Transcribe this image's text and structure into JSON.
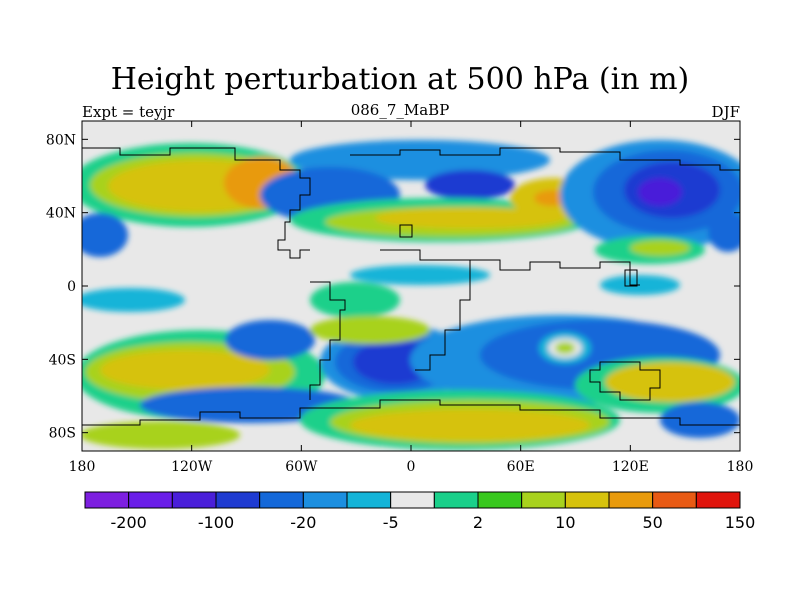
{
  "title": "Height perturbation at 500 hPa (in m)",
  "subtitle_left": "Expt = teyjr",
  "subtitle_center": "086_7_MaBP",
  "subtitle_right": "DJF",
  "axes": {
    "x_range": [
      -180,
      180
    ],
    "y_range": [
      -90,
      90
    ],
    "x_ticks": [
      {
        "value": -180,
        "label": "180"
      },
      {
        "value": -120,
        "label": "120W"
      },
      {
        "value": -60,
        "label": "60W"
      },
      {
        "value": 0,
        "label": "0"
      },
      {
        "value": 60,
        "label": "60E"
      },
      {
        "value": 120,
        "label": "120E"
      },
      {
        "value": 180,
        "label": "180"
      }
    ],
    "y_ticks": [
      {
        "value": 80,
        "label": "80N"
      },
      {
        "value": 40,
        "label": "40N"
      },
      {
        "value": 0,
        "label": "0"
      },
      {
        "value": -40,
        "label": "40S"
      },
      {
        "value": -80,
        "label": "80S"
      }
    ]
  },
  "colorbar": {
    "colors": [
      "#7d1fe0",
      "#6a1ee8",
      "#4a1fd9",
      "#1f3bd1",
      "#1468d9",
      "#1c8fe0",
      "#14b4d8",
      "#e8e8e8",
      "#1ad08a",
      "#38c81e",
      "#a8d21e",
      "#d6c20c",
      "#e89a0c",
      "#e85a14",
      "#e0140c"
    ],
    "labels": [
      {
        "after_box": 1,
        "text": "-200"
      },
      {
        "after_box": 3,
        "text": "-100"
      },
      {
        "after_box": 5,
        "text": "-20"
      },
      {
        "after_box": 7,
        "text": "-5"
      },
      {
        "after_box": 9,
        "text": "2"
      },
      {
        "after_box": 11,
        "text": "10"
      },
      {
        "after_box": 13,
        "text": "50"
      },
      {
        "after_box": 15,
        "text": "150"
      }
    ]
  }
}
